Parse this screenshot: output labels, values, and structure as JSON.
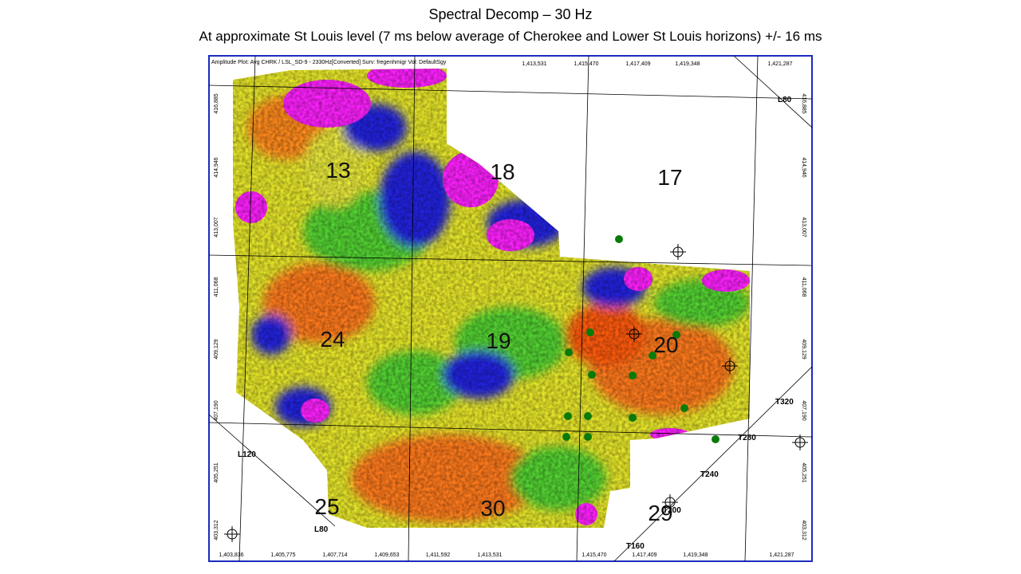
{
  "header": {
    "title": "Spectral Decomp – 30 Hz",
    "subtitle": "At approximate St Louis level (7 ms below average of Cherokee  and Lower St Louis horizons) +/- 16 ms"
  },
  "map": {
    "caption": "Amplitude Plot: Avg CHRK / LSL_SD-9 - 2330Hz[Converted] Surv: fregenhmigr Vol: DefaultSgy",
    "top_ticks": [
      "1,413,531",
      "1,415,470",
      "1,417,409",
      "1,419,348",
      "1,421,287"
    ],
    "bottom_ticks": [
      "1,403,836",
      "1,405,775",
      "1,407,714",
      "1,409,653",
      "1,411,592",
      "1,413,531",
      "1,415,470",
      "1,417,409",
      "1,419,348",
      "1,421,287"
    ],
    "side_ticks": [
      "416,885",
      "414,946",
      "413,007",
      "411,068",
      "409,129",
      "407,190",
      "405,251",
      "403,312"
    ],
    "sections": [
      "13",
      "18",
      "17",
      "24",
      "19",
      "20",
      "25",
      "30",
      "29"
    ],
    "line_labels": [
      "L80",
      "L120",
      "L80",
      "T320",
      "T280",
      "T240",
      "T200",
      "T160"
    ]
  }
}
